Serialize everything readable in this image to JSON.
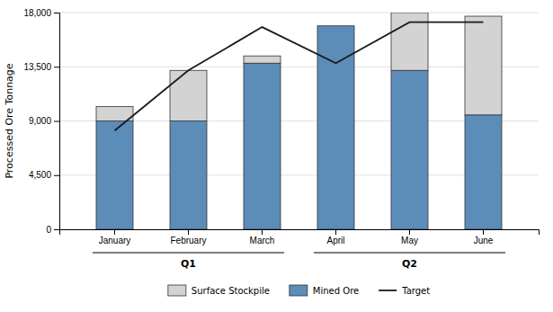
{
  "chart_data": {
    "type": "bar",
    "stacked": true,
    "categories": [
      "January",
      "February",
      "March",
      "April",
      "May",
      "June"
    ],
    "series": [
      {
        "name": "Mined Ore",
        "color": "#5b8db8",
        "values": [
          9000,
          9000,
          13800,
          16900,
          13200,
          9500
        ]
      },
      {
        "name": "Surface Stockpile",
        "color": "#d3d3d3",
        "values": [
          1200,
          4200,
          600,
          0,
          4800,
          8200
        ]
      },
      {
        "name": "Target",
        "type": "line",
        "color": "#1a1a1a",
        "values": [
          8200,
          13200,
          16800,
          13800,
          17200,
          17200
        ]
      }
    ],
    "ylabel": "Processed Ore Tonnage",
    "ylim": [
      0,
      18000
    ],
    "yticks": [
      0,
      {
        "value": 4500,
        "label": "4,500"
      },
      {
        "value": 9000,
        "label": "9,000"
      },
      {
        "value": 13500,
        "label": "13,500"
      },
      {
        "value": 18000,
        "label": "18,000"
      }
    ],
    "grid": true,
    "legend": "bottom",
    "groups": [
      {
        "label": "Q1",
        "categories": [
          "January",
          "February",
          "March"
        ]
      },
      {
        "label": "Q2",
        "categories": [
          "April",
          "May",
          "June"
        ]
      }
    ]
  }
}
